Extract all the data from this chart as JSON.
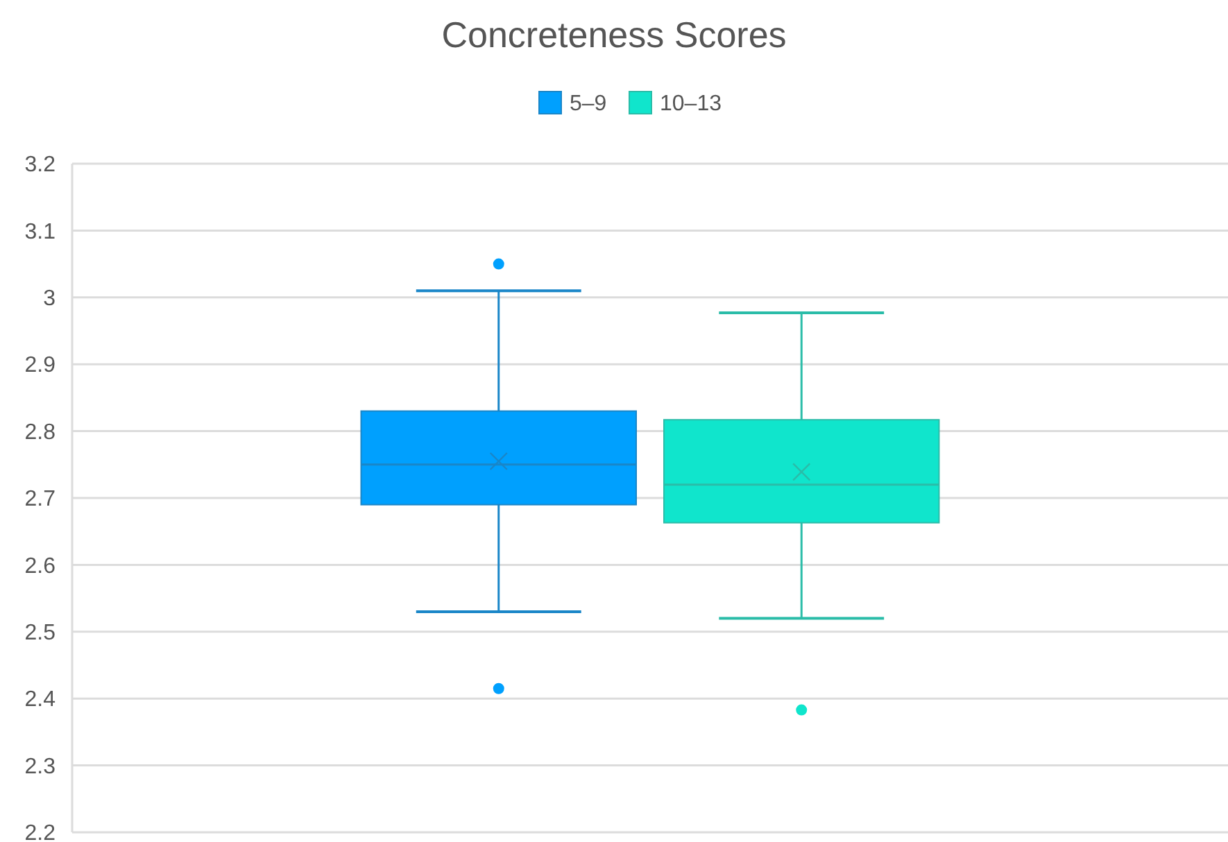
{
  "chart_data": {
    "type": "box",
    "title": "Concreteness Scores",
    "categories": [
      null
    ],
    "legend": "top",
    "grid": "y",
    "ylim": [
      2.2,
      3.2
    ],
    "yticks": [
      {
        "value": 2.2,
        "label": "2.2"
      },
      {
        "value": 2.3,
        "label": "2.3"
      },
      {
        "value": 2.4,
        "label": "2.4"
      },
      {
        "value": 2.5,
        "label": "2.5"
      },
      {
        "value": 2.6,
        "label": "2.6"
      },
      {
        "value": 2.7,
        "label": "2.7"
      },
      {
        "value": 2.8,
        "label": "2.8"
      },
      {
        "value": 2.9,
        "label": "2.9"
      },
      {
        "value": 3,
        "label": "3"
      },
      {
        "value": 3.1,
        "label": "3.1"
      },
      {
        "value": 3.2,
        "label": "3.2"
      }
    ],
    "series": [
      {
        "name": "5–9",
        "color": "#00a0fe",
        "boxes": [
          {
            "low": 2.53,
            "q1": 2.69,
            "median": 2.75,
            "q3": 2.83,
            "high": 3.01,
            "mean": 2.755,
            "outliers": [
              3.05,
              2.415
            ]
          }
        ]
      },
      {
        "name": "10–13",
        "color": "#10e5cc",
        "boxes": [
          {
            "low": 2.52,
            "q1": 2.663,
            "median": 2.72,
            "q3": 2.817,
            "high": 2.977,
            "mean": 2.739,
            "outliers": [
              2.383
            ]
          }
        ]
      }
    ]
  }
}
